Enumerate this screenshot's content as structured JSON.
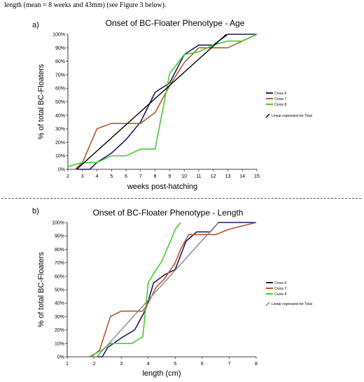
{
  "intro_text": "length (mean = 8 weeks and 43mm) (see Figure 3 below).",
  "colors": {
    "cross6": "#1d1a63",
    "cross7": "#b3572a",
    "cross8": "#3fcf2c",
    "regression": "#000000",
    "regression_b": "#888888",
    "cross7_b_light": "#d9a98a",
    "cross6_b_light": "#a8a0cc"
  },
  "chart_data": [
    {
      "panel": "a)",
      "type": "line",
      "title": "Onset of BC-Floater Phenotype - Age",
      "xlabel": "weeks post-hatching",
      "ylabel": "% of total BC-Floaters",
      "xlim": [
        2,
        15
      ],
      "ylim": [
        0,
        100
      ],
      "x_ticks": [
        "2",
        "3",
        "4",
        "5",
        "6",
        "7",
        "8",
        "9",
        "10",
        "11",
        "12",
        "13",
        "14",
        "15"
      ],
      "y_ticks": [
        "0%",
        "10%",
        "20%",
        "30%",
        "40%",
        "50%",
        "60%",
        "70%",
        "80%",
        "90%",
        "100%"
      ],
      "legend": [
        "Cross 6",
        "Cross 7",
        "Cross 8",
        "Linear regression for Total"
      ],
      "series": [
        {
          "name": "Cross 6",
          "x": [
            2.6,
            3,
            3.5,
            4,
            5,
            6,
            7,
            8,
            9,
            10,
            11,
            12,
            13,
            14,
            15
          ],
          "y": [
            0,
            0,
            0,
            5,
            12,
            22,
            35,
            57,
            64,
            85,
            92,
            92,
            100,
            100,
            100
          ]
        },
        {
          "name": "Cross 7",
          "x": [
            2.5,
            3,
            4,
            5,
            6,
            7,
            8,
            9,
            10,
            11,
            12,
            13,
            14,
            15
          ],
          "y": [
            0,
            5,
            30,
            34,
            34,
            34,
            42,
            62,
            79,
            90,
            90,
            90,
            95,
            100
          ]
        },
        {
          "name": "Cross 8",
          "x": [
            2,
            3,
            4,
            5,
            6,
            7,
            8,
            9,
            10,
            11,
            12,
            13,
            14,
            15
          ],
          "y": [
            2,
            5,
            5,
            10,
            10,
            15,
            15,
            71,
            85,
            87,
            92,
            95,
            95,
            100
          ]
        },
        {
          "name": "Linear regression for Total",
          "x": [
            2.6,
            12.9
          ],
          "y": [
            0,
            100
          ]
        }
      ]
    },
    {
      "panel": "b)",
      "type": "line",
      "title": "Onset of BC-Floater Phenotype - Length",
      "xlabel": "length (cm)",
      "ylabel": "% of total BC-Floaters",
      "xlim": [
        1,
        8
      ],
      "ylim": [
        0,
        100
      ],
      "x_ticks": [
        "1",
        "2",
        "3",
        "4",
        "5",
        "6",
        "7",
        "8"
      ],
      "y_ticks": [
        "0%",
        "10%",
        "20%",
        "30%",
        "40%",
        "50%",
        "60%",
        "70%",
        "80%",
        "90%",
        "100%"
      ],
      "legend": [
        "Cross 6",
        "Cross 7",
        "Cross 8",
        "Linear regression for Total"
      ],
      "series": [
        {
          "name": "Cross 6",
          "x": [
            2.1,
            2.3,
            2.5,
            3,
            3.5,
            3.9,
            4.2,
            4.6,
            5,
            5.4,
            5.8,
            6,
            6.3,
            6.6,
            7,
            8
          ],
          "y": [
            0,
            0,
            7,
            14,
            20,
            35,
            55,
            61,
            65,
            86,
            93,
            93,
            93,
            100,
            100,
            100
          ]
        },
        {
          "name": "Cross 7",
          "x": [
            1.9,
            2.2,
            2.6,
            3,
            3.5,
            3.8,
            4,
            4.3,
            4.6,
            5,
            5.2,
            5.5,
            6,
            6.5,
            7,
            8
          ],
          "y": [
            0,
            5,
            30,
            34,
            34,
            34,
            40,
            52,
            58,
            70,
            80,
            91,
            91,
            91,
            95,
            100
          ]
        },
        {
          "name": "Cross 8",
          "x": [
            1.8,
            2.3,
            2.6,
            3,
            3.4,
            3.8,
            4,
            4.2,
            4.5,
            4.8,
            5,
            5.2
          ],
          "y": [
            0,
            5,
            10,
            10,
            10,
            15,
            55,
            62,
            71,
            85,
            95,
            100
          ]
        },
        {
          "name": "Linear regression for Total",
          "x": [
            2.1,
            6.6
          ],
          "y": [
            0,
            100
          ]
        }
      ]
    }
  ]
}
